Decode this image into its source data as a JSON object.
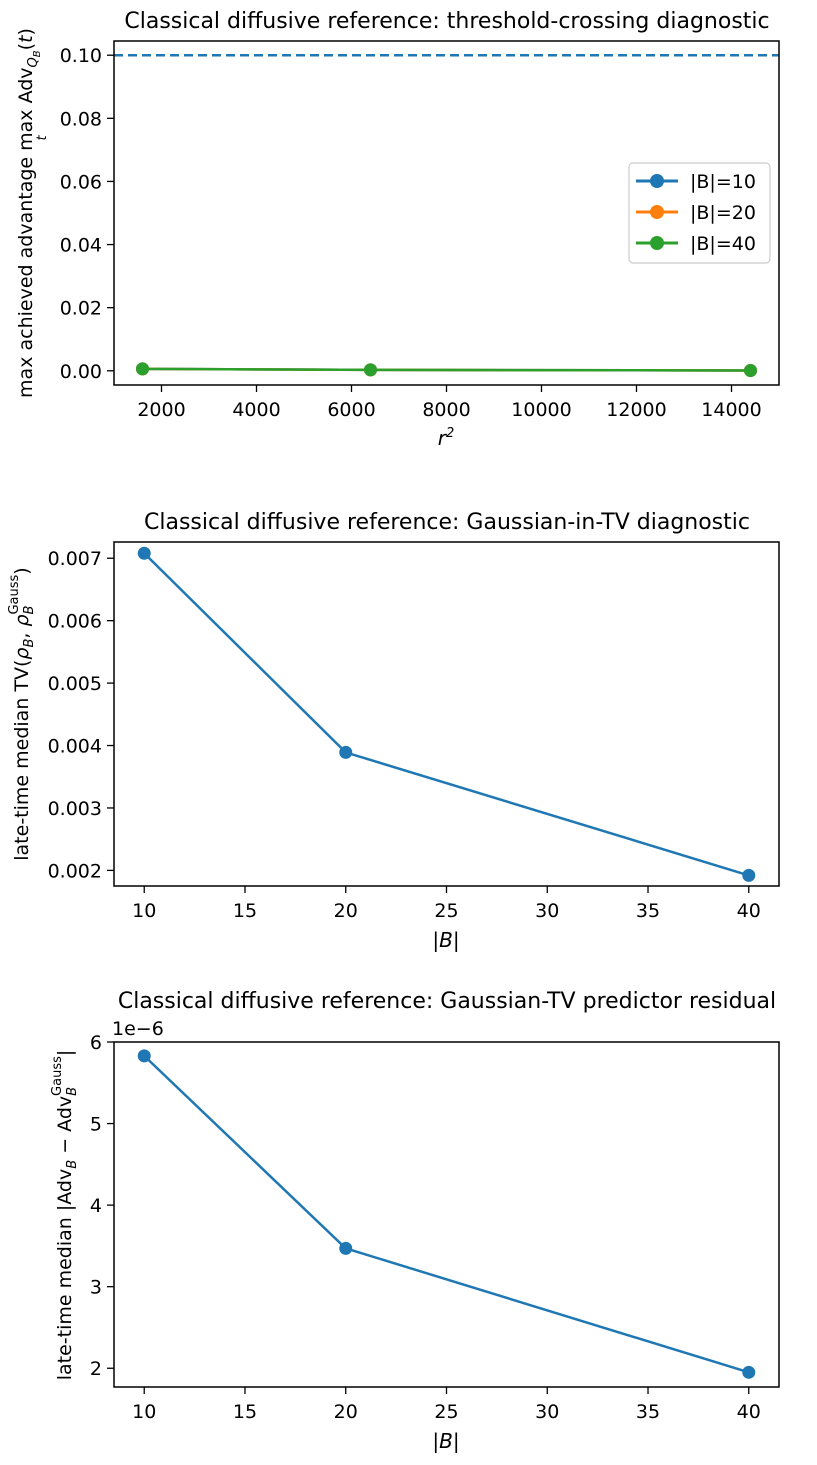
{
  "chart_data": [
    {
      "type": "line",
      "title": "Classical diffusive reference: threshold-crossing diagnostic",
      "xlabel": "r²",
      "ylabel": "max achieved advantage max_t Adv_{Q_B}(t)",
      "xlim": [
        1000,
        15000
      ],
      "ylim": [
        -0.0045,
        0.1045
      ],
      "xticks": [
        2000,
        4000,
        6000,
        8000,
        10000,
        12000,
        14000
      ],
      "yticks": [
        0.0,
        0.02,
        0.04,
        0.06,
        0.08,
        0.1
      ],
      "ytick_decimals": 2,
      "grid": false,
      "legend": "center-right",
      "x": [
        1600,
        6400,
        14400
      ],
      "series": [
        {
          "name": "|B|=10",
          "color": "#1f77b4",
          "values": [
            0.0006,
            0.0003,
            0.0001
          ]
        },
        {
          "name": "|B|=20",
          "color": "#ff7f0e",
          "values": [
            0.0006,
            0.0003,
            0.0001
          ]
        },
        {
          "name": "|B|=40",
          "color": "#2ca02c",
          "values": [
            0.0006,
            0.0003,
            0.0001
          ]
        }
      ],
      "hline": {
        "y": 0.1,
        "color": "#1f77b4",
        "style": "dashed"
      }
    },
    {
      "type": "line",
      "title": "Classical diffusive reference: Gaussian-in-TV diagnostic",
      "xlabel": "|B|",
      "ylabel": "late-time median TV(ρ_B, ρ_B^Gauss)",
      "xlim": [
        8.5,
        41.5
      ],
      "ylim": [
        0.00175,
        0.00726
      ],
      "xticks": [
        10,
        15,
        20,
        25,
        30,
        35,
        40
      ],
      "yticks": [
        0.002,
        0.003,
        0.004,
        0.005,
        0.006,
        0.007
      ],
      "ytick_decimals": 3,
      "grid": false,
      "x": [
        10,
        20,
        40
      ],
      "series": [
        {
          "color": "#1f77b4",
          "values": [
            0.00708,
            0.00389,
            0.00192
          ]
        }
      ]
    },
    {
      "type": "line",
      "title": "Classical diffusive reference: Gaussian-TV predictor residual",
      "xlabel": "|B|",
      "ylabel": "late-time median |Adv_B − Adv_B^Gauss|",
      "offset_label": "1e−6",
      "xlim": [
        8.5,
        41.5
      ],
      "ylim": [
        1.77,
        6.0
      ],
      "xticks": [
        10,
        15,
        20,
        25,
        30,
        35,
        40
      ],
      "yticks": [
        2,
        3,
        4,
        5,
        6
      ],
      "ytick_decimals": 0,
      "grid": false,
      "x": [
        10,
        20,
        40
      ],
      "series": [
        {
          "color": "#1f77b4",
          "values": [
            5.83,
            3.47,
            1.95
          ]
        }
      ]
    }
  ]
}
